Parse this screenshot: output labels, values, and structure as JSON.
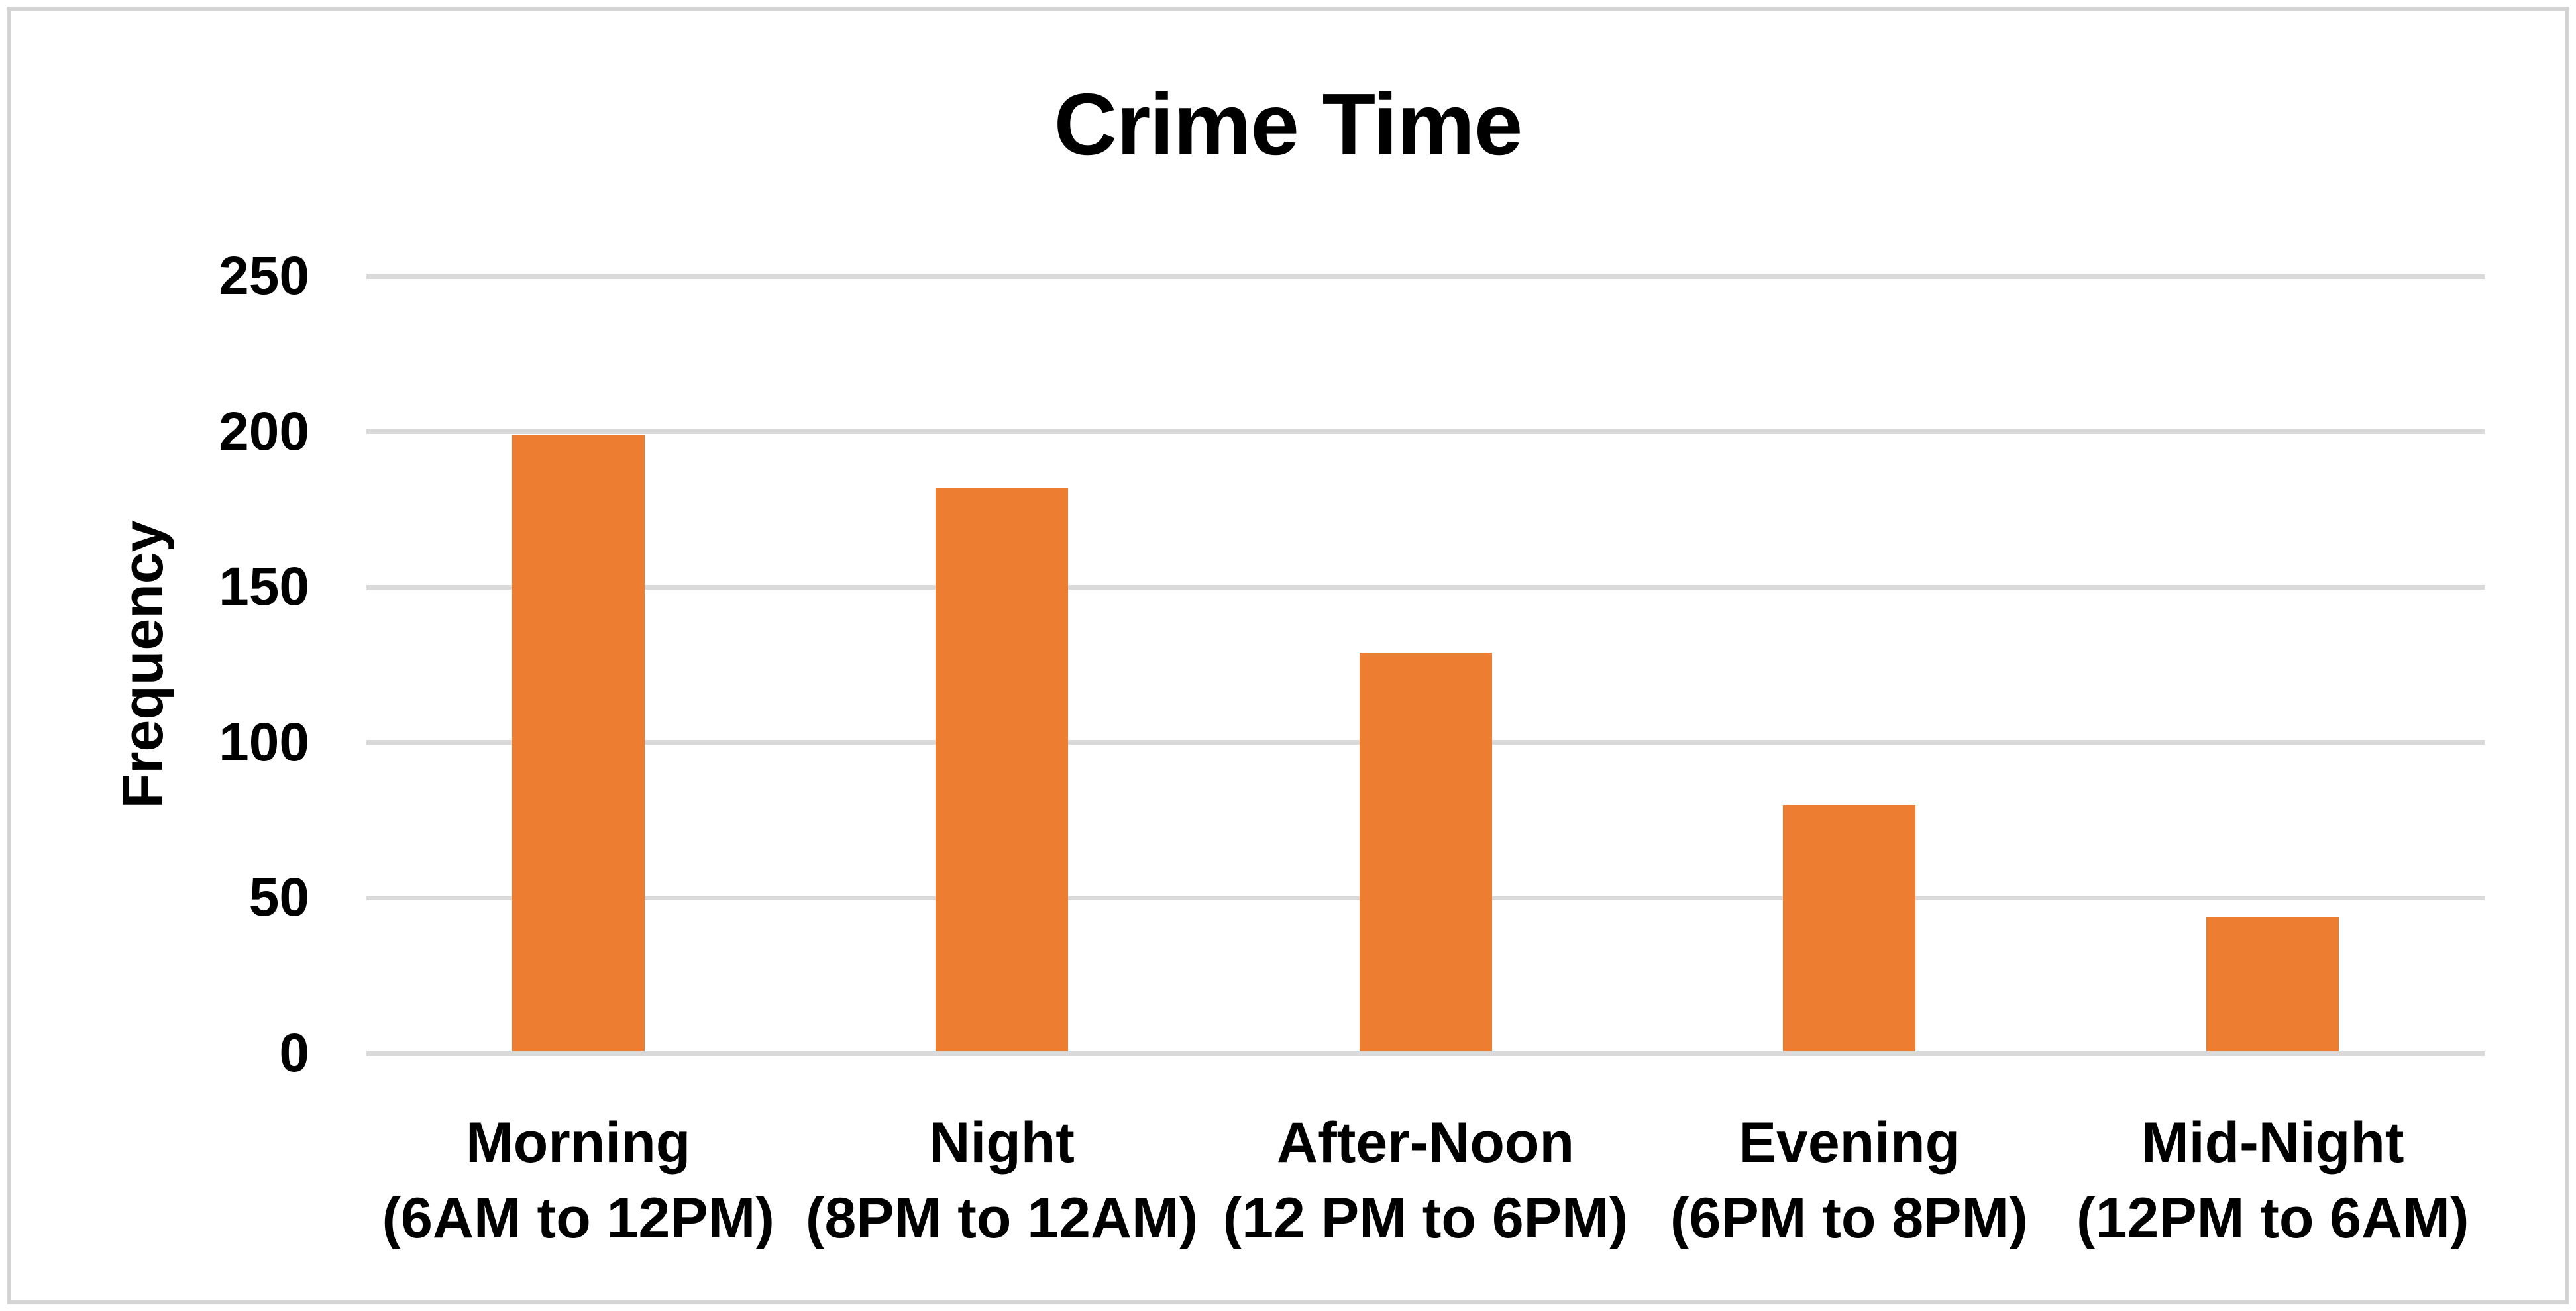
{
  "chart_data": {
    "type": "bar",
    "title": "Crime Time",
    "ylabel": "Frequency",
    "xlabel": "",
    "ylim": [
      0,
      250
    ],
    "ytick_interval": 50,
    "yticks": [
      0,
      50,
      100,
      150,
      200,
      250
    ],
    "grid": true,
    "legend": false,
    "categories": [
      {
        "name": "Morning",
        "time_range": "(6AM to 12PM)"
      },
      {
        "name": "Night",
        "time_range": "(8PM to 12AM)"
      },
      {
        "name": "After-Noon",
        "time_range": "(12 PM to 6PM)"
      },
      {
        "name": "Evening",
        "time_range": "(6PM to 8PM)"
      },
      {
        "name": "Mid-Night",
        "time_range": "(12PM to 6AM)"
      }
    ],
    "values": [
      199,
      182,
      129,
      80,
      44
    ],
    "colors": {
      "bar": "#ED7D31",
      "gridline": "#D9D9D9",
      "axis_line": "#D9D9D9",
      "text": "#000000",
      "frame_border": "#D5D5D5",
      "background": "#FFFFFF"
    }
  }
}
